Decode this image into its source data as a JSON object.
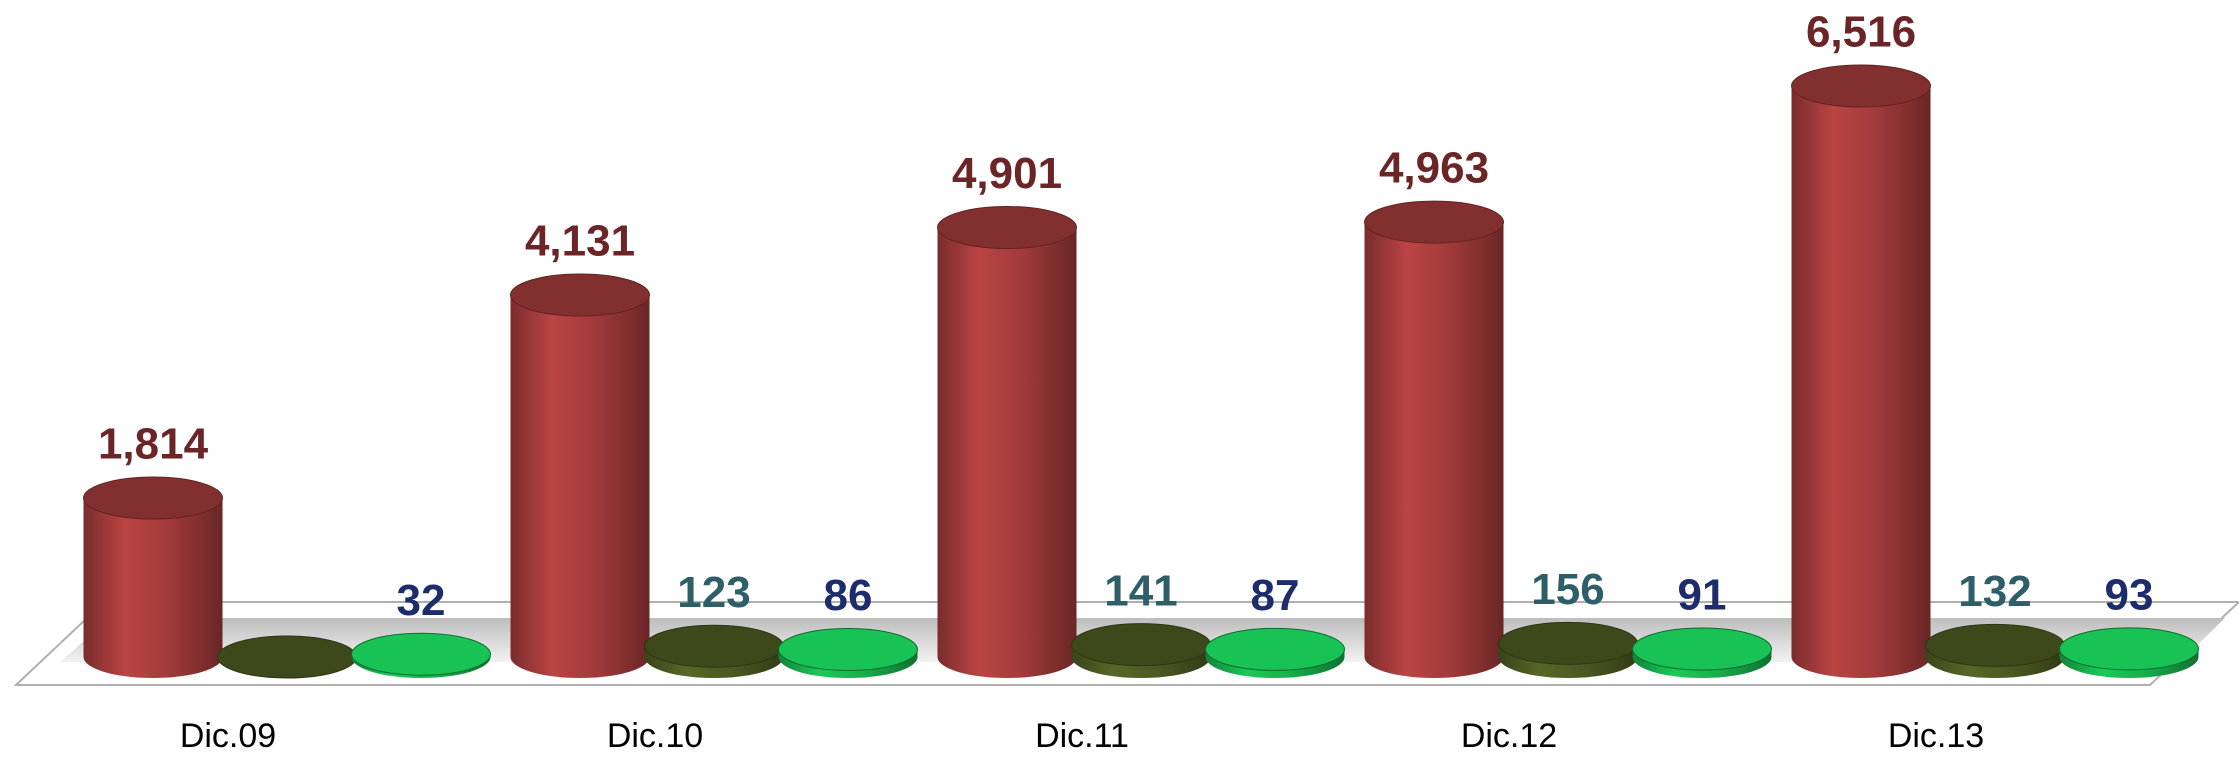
{
  "chart_data": {
    "type": "bar3d",
    "categories": [
      "Dic.09",
      "Dic.10",
      "Dic.11",
      "Dic.12",
      "Dic.13"
    ],
    "series": [
      {
        "color": "#a33b3b",
        "label_color": "#6b2527",
        "values": [
          1814,
          4131,
          4901,
          4963,
          6516
        ],
        "value_labels": [
          "1,814",
          "4,131",
          "4,901",
          "4,963",
          "6,516"
        ]
      },
      {
        "color": "#4c5a22",
        "label_color": "#2e5f68",
        "values": [
          null,
          123,
          141,
          156,
          132
        ]
      },
      {
        "color": "#17b04c",
        "label_color": "#1d2c6b",
        "values": [
          32,
          86,
          87,
          91,
          93
        ]
      }
    ]
  }
}
